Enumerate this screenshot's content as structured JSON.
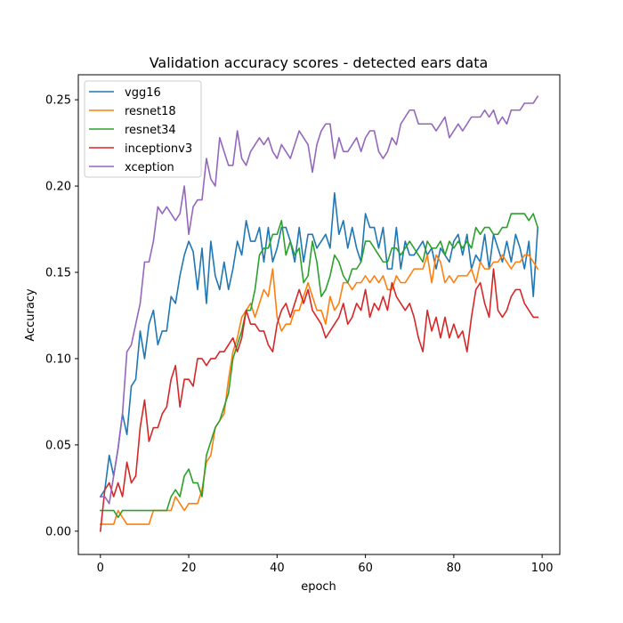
{
  "chart_data": {
    "type": "line",
    "title": "Validation accuracy scores - detected ears data",
    "xlabel": "epoch",
    "ylabel": "Accuracy",
    "xlim": [
      -5,
      104
    ],
    "ylim": [
      -0.0135,
      0.2645
    ],
    "xticks": [
      0,
      20,
      40,
      60,
      80,
      100
    ],
    "xtick_labels": [
      "0",
      "20",
      "40",
      "60",
      "80",
      "100"
    ],
    "yticks": [
      0.0,
      0.05,
      0.1,
      0.15,
      0.2,
      0.25
    ],
    "ytick_labels": [
      "0.00",
      "0.05",
      "0.10",
      "0.15",
      "0.20",
      "0.25"
    ],
    "grid": false,
    "legend_position": "top-left",
    "series": [
      {
        "name": "vgg16",
        "color": "#1f77b4",
        "values": [
          0.02,
          0.024,
          0.044,
          0.032,
          0.048,
          0.068,
          0.056,
          0.084,
          0.088,
          0.116,
          0.1,
          0.12,
          0.128,
          0.108,
          0.116,
          0.116,
          0.136,
          0.132,
          0.148,
          0.16,
          0.168,
          0.162,
          0.14,
          0.164,
          0.132,
          0.168,
          0.148,
          0.14,
          0.156,
          0.14,
          0.152,
          0.168,
          0.16,
          0.18,
          0.168,
          0.168,
          0.176,
          0.156,
          0.176,
          0.156,
          0.164,
          0.176,
          0.176,
          0.168,
          0.156,
          0.176,
          0.156,
          0.172,
          0.172,
          0.164,
          0.168,
          0.172,
          0.164,
          0.196,
          0.172,
          0.18,
          0.164,
          0.176,
          0.164,
          0.156,
          0.184,
          0.176,
          0.176,
          0.164,
          0.176,
          0.152,
          0.152,
          0.176,
          0.152,
          0.168,
          0.16,
          0.16,
          0.164,
          0.168,
          0.16,
          0.164,
          0.152,
          0.164,
          0.16,
          0.156,
          0.168,
          0.172,
          0.16,
          0.172,
          0.152,
          0.16,
          0.156,
          0.172,
          0.152,
          0.172,
          0.164,
          0.156,
          0.168,
          0.156,
          0.172,
          0.164,
          0.152,
          0.168,
          0.136,
          0.176
        ]
      },
      {
        "name": "resnet18",
        "color": "#ff7f0e",
        "values": [
          0.004,
          0.004,
          0.004,
          0.004,
          0.012,
          0.008,
          0.004,
          0.004,
          0.004,
          0.004,
          0.004,
          0.004,
          0.012,
          0.012,
          0.012,
          0.012,
          0.012,
          0.02,
          0.016,
          0.012,
          0.016,
          0.016,
          0.016,
          0.024,
          0.04,
          0.044,
          0.06,
          0.064,
          0.068,
          0.088,
          0.104,
          0.112,
          0.124,
          0.128,
          0.132,
          0.124,
          0.132,
          0.14,
          0.136,
          0.152,
          0.124,
          0.116,
          0.12,
          0.12,
          0.128,
          0.128,
          0.136,
          0.144,
          0.136,
          0.128,
          0.128,
          0.12,
          0.136,
          0.128,
          0.132,
          0.144,
          0.144,
          0.14,
          0.144,
          0.144,
          0.148,
          0.144,
          0.148,
          0.144,
          0.148,
          0.14,
          0.14,
          0.148,
          0.144,
          0.144,
          0.148,
          0.152,
          0.152,
          0.152,
          0.16,
          0.144,
          0.16,
          0.156,
          0.144,
          0.148,
          0.144,
          0.148,
          0.148,
          0.148,
          0.152,
          0.144,
          0.156,
          0.152,
          0.152,
          0.156,
          0.156,
          0.16,
          0.156,
          0.152,
          0.156,
          0.156,
          0.16,
          0.16,
          0.156,
          0.152
        ]
      },
      {
        "name": "resnet34",
        "color": "#2ca02c",
        "values": [
          0.012,
          0.012,
          0.012,
          0.012,
          0.008,
          0.012,
          0.012,
          0.012,
          0.012,
          0.012,
          0.012,
          0.012,
          0.012,
          0.012,
          0.012,
          0.012,
          0.02,
          0.024,
          0.02,
          0.032,
          0.036,
          0.028,
          0.028,
          0.02,
          0.044,
          0.052,
          0.06,
          0.064,
          0.072,
          0.08,
          0.1,
          0.108,
          0.116,
          0.128,
          0.128,
          0.14,
          0.16,
          0.164,
          0.164,
          0.172,
          0.172,
          0.18,
          0.16,
          0.168,
          0.16,
          0.164,
          0.144,
          0.148,
          0.168,
          0.156,
          0.136,
          0.14,
          0.148,
          0.16,
          0.156,
          0.148,
          0.144,
          0.152,
          0.152,
          0.156,
          0.168,
          0.168,
          0.164,
          0.16,
          0.156,
          0.156,
          0.164,
          0.164,
          0.16,
          0.164,
          0.168,
          0.164,
          0.16,
          0.156,
          0.168,
          0.164,
          0.164,
          0.168,
          0.16,
          0.168,
          0.164,
          0.168,
          0.164,
          0.168,
          0.164,
          0.176,
          0.172,
          0.176,
          0.176,
          0.172,
          0.172,
          0.176,
          0.176,
          0.184,
          0.184,
          0.184,
          0.184,
          0.18,
          0.184,
          0.176
        ]
      },
      {
        "name": "inceptionv3",
        "color": "#d62728",
        "values": [
          0.0,
          0.024,
          0.028,
          0.02,
          0.028,
          0.02,
          0.04,
          0.028,
          0.032,
          0.06,
          0.076,
          0.052,
          0.06,
          0.06,
          0.068,
          0.072,
          0.088,
          0.096,
          0.072,
          0.088,
          0.088,
          0.084,
          0.1,
          0.1,
          0.096,
          0.1,
          0.1,
          0.104,
          0.104,
          0.108,
          0.112,
          0.104,
          0.112,
          0.128,
          0.12,
          0.12,
          0.116,
          0.116,
          0.108,
          0.104,
          0.12,
          0.128,
          0.132,
          0.124,
          0.132,
          0.14,
          0.132,
          0.14,
          0.128,
          0.124,
          0.12,
          0.112,
          0.116,
          0.12,
          0.124,
          0.132,
          0.12,
          0.124,
          0.132,
          0.128,
          0.14,
          0.124,
          0.132,
          0.128,
          0.136,
          0.128,
          0.144,
          0.136,
          0.132,
          0.128,
          0.132,
          0.124,
          0.112,
          0.104,
          0.128,
          0.116,
          0.124,
          0.112,
          0.124,
          0.112,
          0.12,
          0.112,
          0.116,
          0.104,
          0.124,
          0.14,
          0.144,
          0.132,
          0.124,
          0.152,
          0.128,
          0.124,
          0.128,
          0.136,
          0.14,
          0.14,
          0.132,
          0.128,
          0.124,
          0.124
        ]
      },
      {
        "name": "xception",
        "color": "#9467bd",
        "values": [
          0.02,
          0.02,
          0.016,
          0.032,
          0.048,
          0.068,
          0.104,
          0.108,
          0.12,
          0.132,
          0.156,
          0.156,
          0.168,
          0.188,
          0.184,
          0.188,
          0.184,
          0.18,
          0.184,
          0.2,
          0.172,
          0.188,
          0.192,
          0.192,
          0.216,
          0.204,
          0.2,
          0.228,
          0.22,
          0.212,
          0.212,
          0.232,
          0.216,
          0.212,
          0.22,
          0.224,
          0.228,
          0.224,
          0.228,
          0.22,
          0.216,
          0.224,
          0.22,
          0.216,
          0.224,
          0.232,
          0.228,
          0.224,
          0.208,
          0.224,
          0.232,
          0.236,
          0.236,
          0.216,
          0.228,
          0.22,
          0.22,
          0.224,
          0.228,
          0.22,
          0.228,
          0.232,
          0.232,
          0.22,
          0.216,
          0.22,
          0.228,
          0.224,
          0.236,
          0.24,
          0.244,
          0.244,
          0.236,
          0.236,
          0.236,
          0.236,
          0.232,
          0.236,
          0.24,
          0.228,
          0.232,
          0.236,
          0.232,
          0.236,
          0.24,
          0.24,
          0.24,
          0.244,
          0.24,
          0.244,
          0.236,
          0.24,
          0.236,
          0.244,
          0.244,
          0.244,
          0.248,
          0.248,
          0.248,
          0.252
        ]
      }
    ]
  }
}
